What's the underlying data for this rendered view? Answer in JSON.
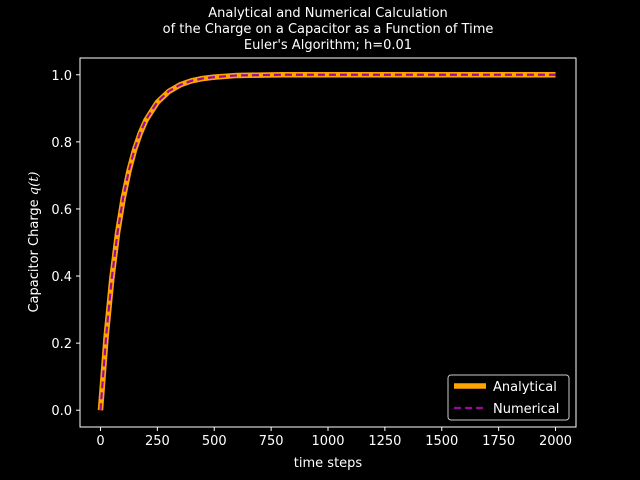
{
  "chart_data": {
    "type": "line",
    "title_lines": [
      "Analytical and Numerical Calculation",
      "of the Charge on a Capacitor as a Function of Time",
      "Euler's Algorithm; h=0.01"
    ],
    "xlabel": "time steps",
    "ylabel_prefix": "Capacitor Charge ",
    "ylabel_math": "q(t)",
    "xlim": [
      -90,
      2090
    ],
    "ylim": [
      -0.05,
      1.05
    ],
    "xticks": [
      0,
      250,
      500,
      750,
      1000,
      1250,
      1500,
      1750,
      2000
    ],
    "xtick_labels": [
      "0",
      "250",
      "500",
      "750",
      "1000",
      "1250",
      "1500",
      "1750",
      "2000"
    ],
    "yticks": [
      0.0,
      0.2,
      0.4,
      0.6,
      0.8,
      1.0
    ],
    "ytick_labels": [
      "0.0",
      "0.2",
      "0.4",
      "0.6",
      "0.8",
      "1.0"
    ],
    "grid": false,
    "legend_position": "lower-right",
    "x": [
      0,
      25,
      50,
      75,
      100,
      125,
      150,
      175,
      200,
      250,
      300,
      350,
      400,
      450,
      500,
      600,
      700,
      800,
      1000,
      1250,
      1500,
      1750,
      2000
    ],
    "series": [
      {
        "name": "Analytical",
        "color": "#ffa500",
        "style": "solid",
        "values": [
          0.0,
          0.221,
          0.393,
          0.528,
          0.632,
          0.713,
          0.777,
          0.826,
          0.865,
          0.918,
          0.95,
          0.97,
          0.982,
          0.989,
          0.993,
          0.998,
          0.999,
          1.0,
          1.0,
          1.0,
          1.0,
          1.0,
          1.0
        ]
      },
      {
        "name": "Numerical",
        "color": "#9a0a9a",
        "style": "dashed",
        "values": [
          0.0,
          0.222,
          0.395,
          0.53,
          0.634,
          0.715,
          0.779,
          0.828,
          0.866,
          0.919,
          0.951,
          0.97,
          0.982,
          0.989,
          0.993,
          0.998,
          0.999,
          1.0,
          1.0,
          1.0,
          1.0,
          1.0,
          1.0
        ]
      }
    ]
  }
}
